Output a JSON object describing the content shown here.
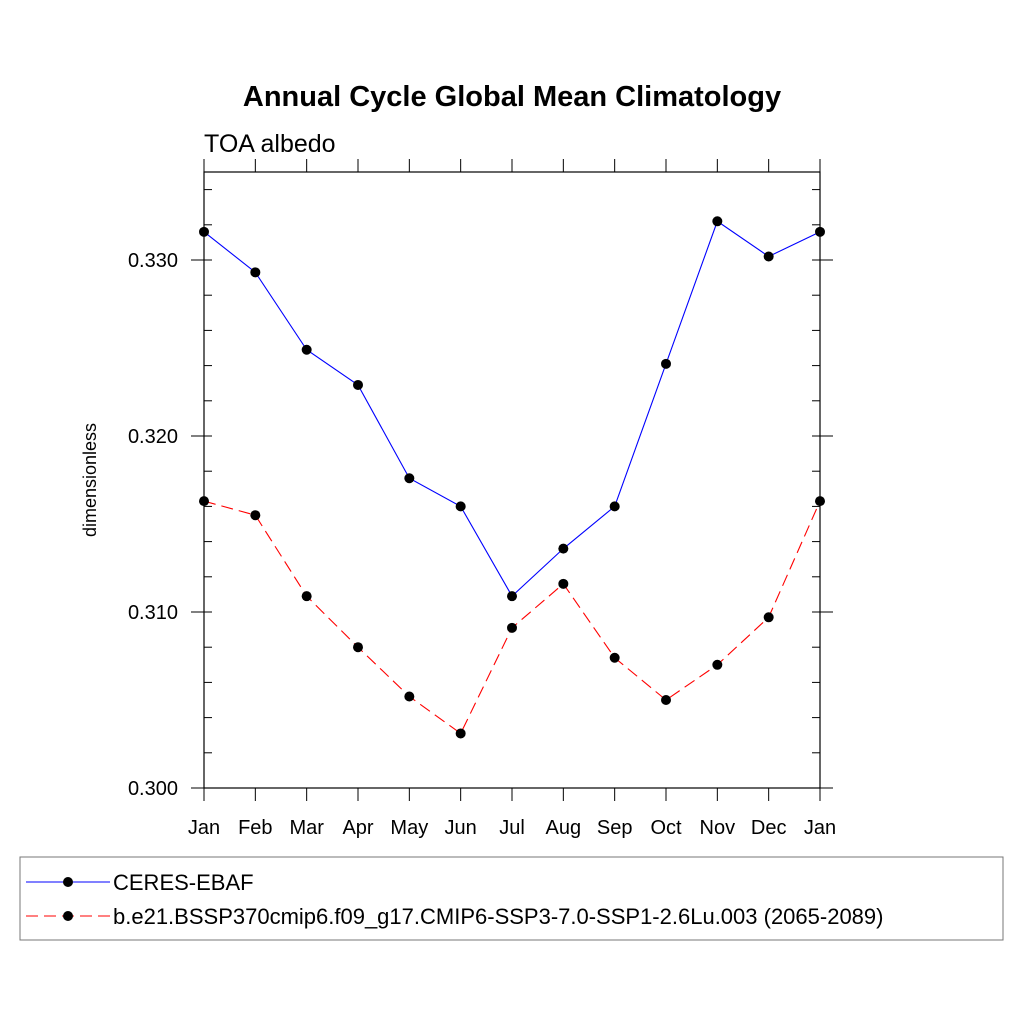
{
  "chart_data": {
    "type": "line",
    "title": "Annual Cycle Global Mean Climatology",
    "subtitle": "TOA albedo",
    "ylabel": "dimensionless",
    "xlabel": "",
    "categories": [
      "Jan",
      "Feb",
      "Mar",
      "Apr",
      "May",
      "Jun",
      "Jul",
      "Aug",
      "Sep",
      "Oct",
      "Nov",
      "Dec",
      "Jan"
    ],
    "ylim": [
      0.3,
      0.335
    ],
    "yticks": [
      0.3,
      0.31,
      0.32,
      0.33
    ],
    "ytick_labels": [
      "0.300",
      "0.310",
      "0.320",
      "0.330"
    ],
    "grid": false,
    "legend_position": "bottom",
    "series": [
      {
        "name": "CERES-EBAF",
        "color": "#0000ff",
        "dash": "solid",
        "values": [
          0.3316,
          0.3293,
          0.3249,
          0.3229,
          0.3176,
          0.316,
          0.3109,
          0.3136,
          0.316,
          0.3241,
          0.3322,
          0.3302,
          0.3316
        ]
      },
      {
        "name": "b.e21.BSSP370cmip6.f09_g17.CMIP6-SSP3-7.0-SSP1-2.6Lu.003 (2065-2089)",
        "color": "#ff0000",
        "dash": "dashed",
        "values": [
          0.3163,
          0.3155,
          0.3109,
          0.308,
          0.3052,
          0.3031,
          0.3091,
          0.3116,
          0.3074,
          0.305,
          0.307,
          0.3097,
          0.3163
        ]
      }
    ]
  }
}
